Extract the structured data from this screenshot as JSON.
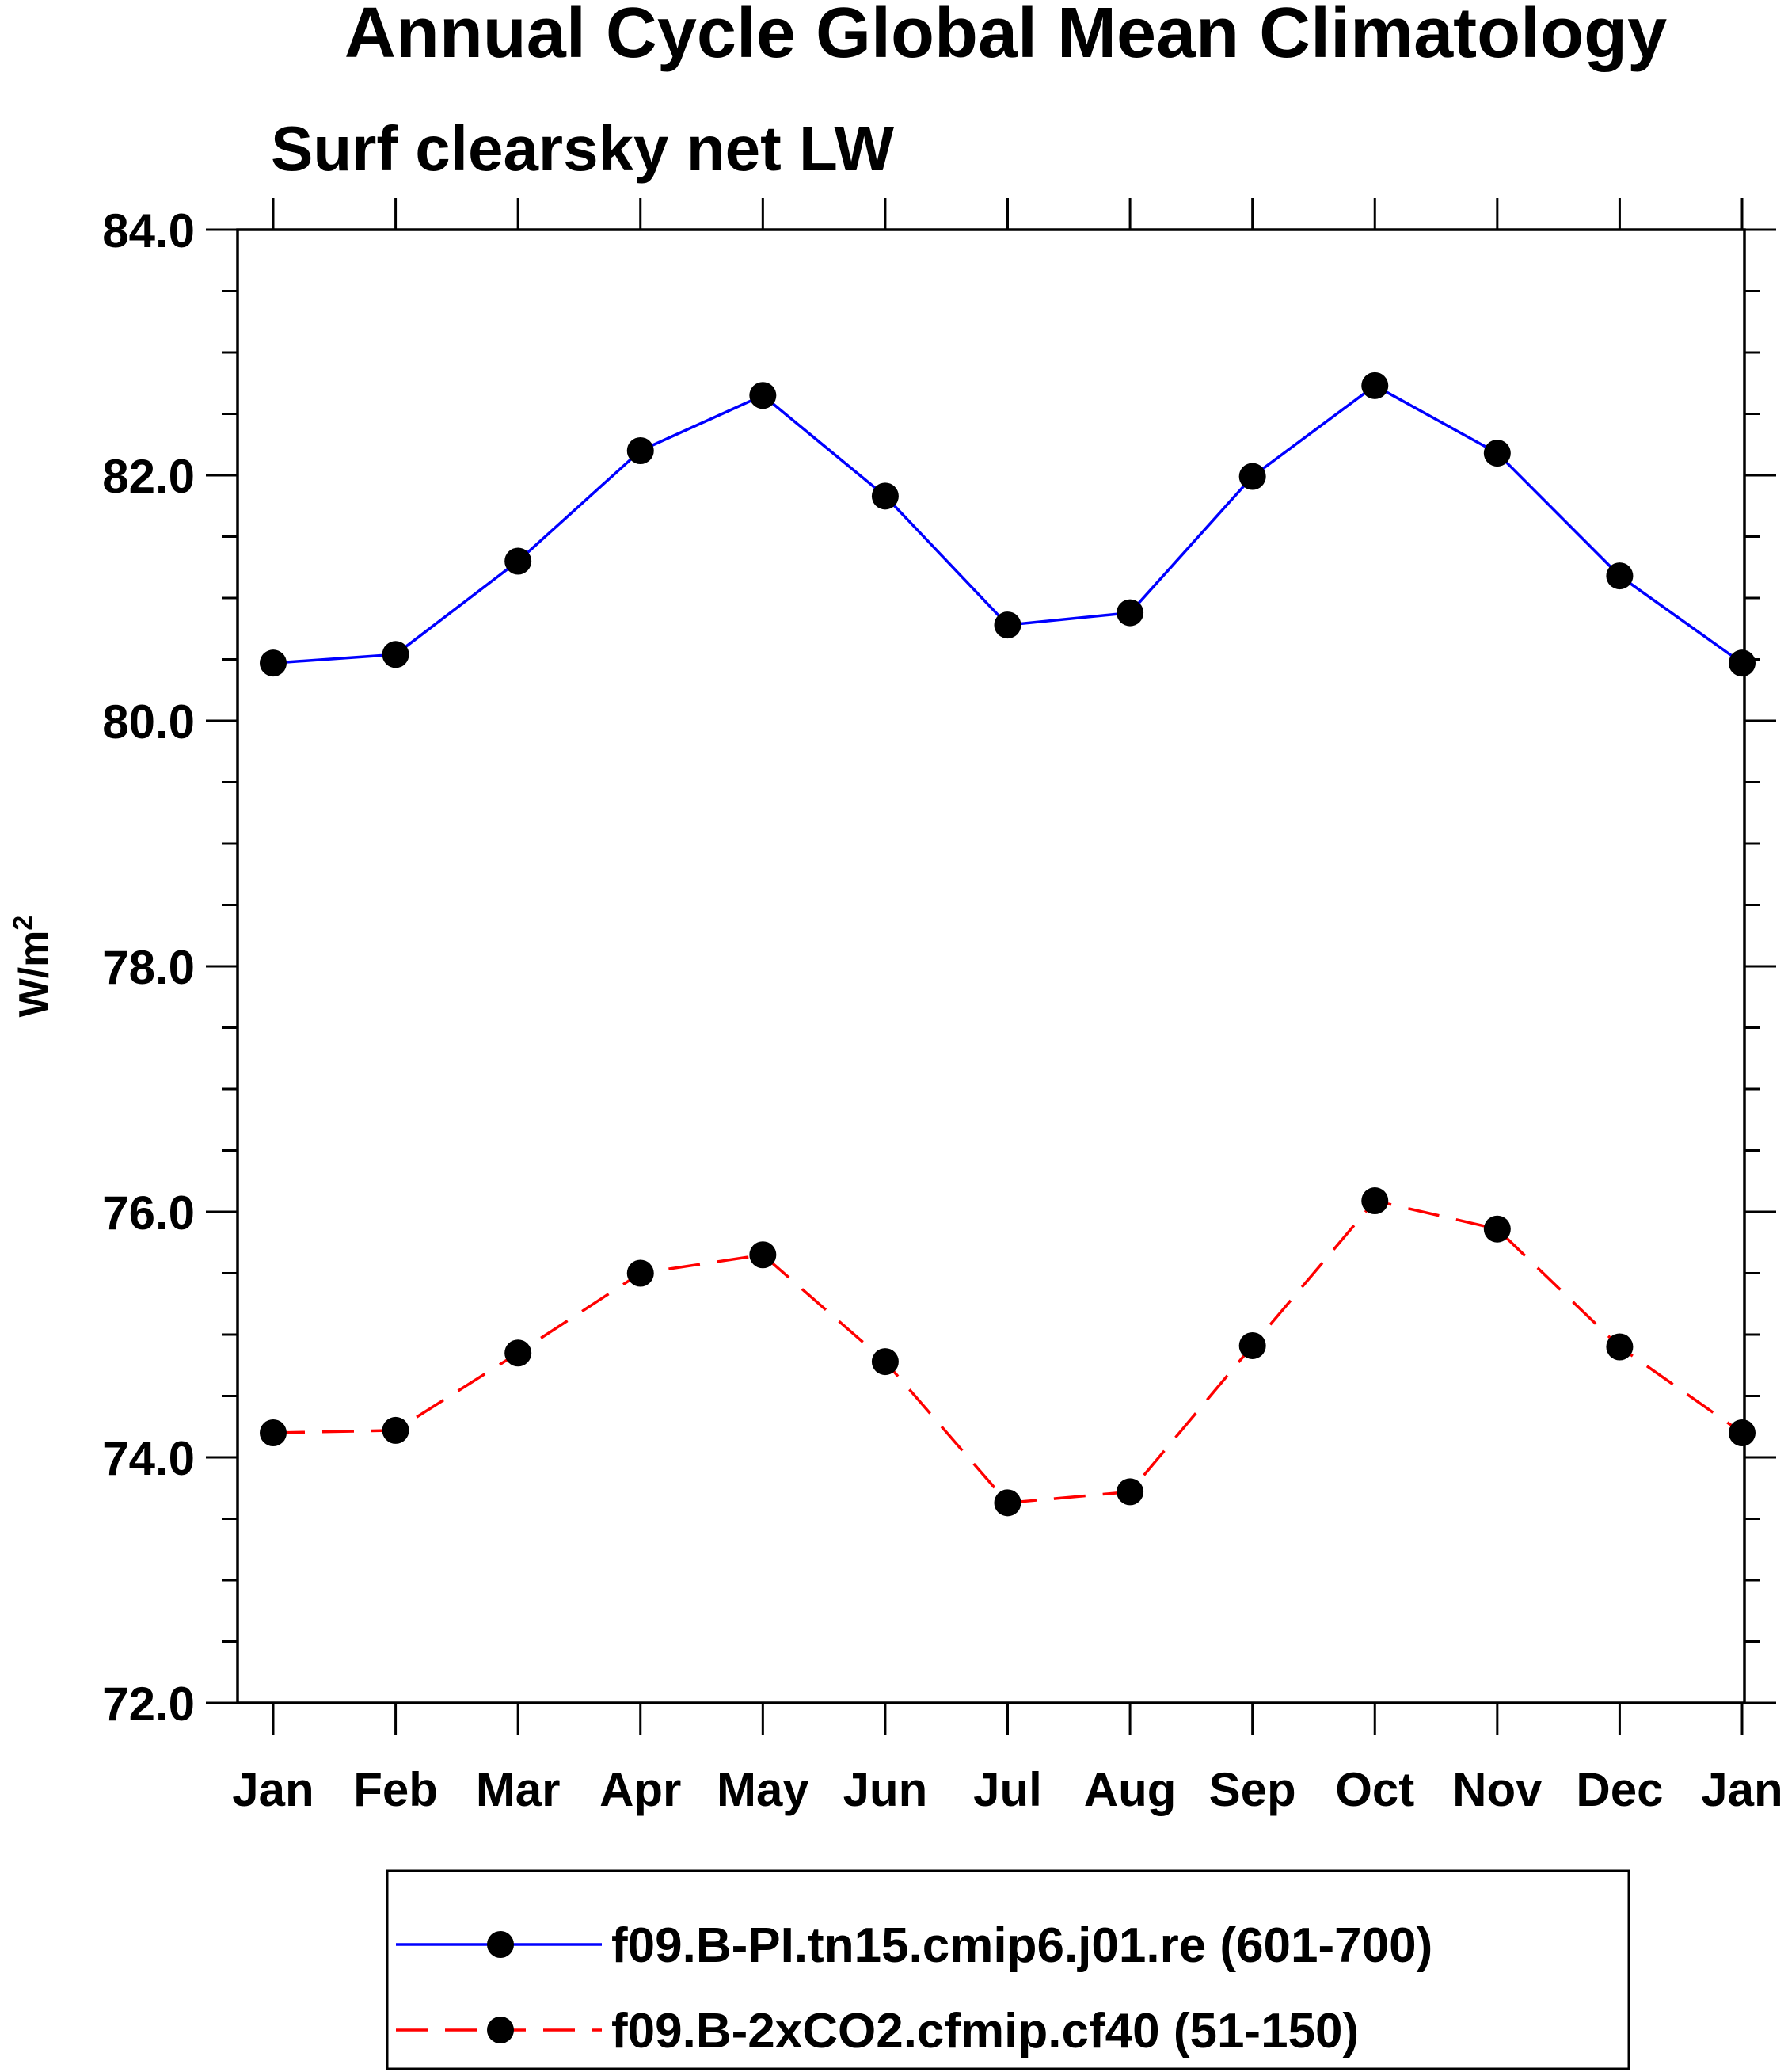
{
  "chart_data": {
    "type": "line",
    "title": "Annual Cycle Global Mean Climatology",
    "subtitle": "Surf clearsky net LW",
    "xlabel": "",
    "ylabel": "W/m",
    "ylabel_superscript": "2",
    "categories": [
      "Jan",
      "Feb",
      "Mar",
      "Apr",
      "May",
      "Jun",
      "Jul",
      "Aug",
      "Sep",
      "Oct",
      "Nov",
      "Dec",
      "Jan"
    ],
    "ylim": [
      72.0,
      84.0
    ],
    "yticks": [
      72.0,
      74.0,
      76.0,
      78.0,
      80.0,
      82.0,
      84.0
    ],
    "ytick_labels": [
      "72.0",
      "74.0",
      "76.0",
      "78.0",
      "80.0",
      "82.0",
      "84.0"
    ],
    "grid": false,
    "legend_position": "bottom",
    "series": [
      {
        "name": "f09.B-PI.tn15.cmip6.j01.re (601-700)",
        "color": "#0000ff",
        "dash": "solid",
        "marker": "filled-circle",
        "values": [
          80.47,
          80.54,
          81.3,
          82.2,
          82.65,
          81.83,
          80.78,
          80.88,
          81.99,
          82.73,
          82.18,
          81.18,
          80.47
        ]
      },
      {
        "name": "f09.B-2xCO2.cfmip.cf40 (51-150)",
        "color": "#ff0000",
        "dash": "dashed",
        "marker": "filled-circle",
        "values": [
          74.2,
          74.22,
          74.85,
          75.5,
          75.65,
          74.78,
          73.63,
          73.72,
          74.91,
          76.09,
          75.86,
          74.9,
          74.2
        ]
      }
    ]
  }
}
